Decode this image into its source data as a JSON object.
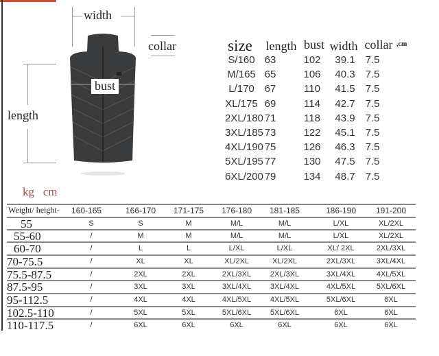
{
  "diagram": {
    "width_label": "width",
    "collar_label": "collar",
    "bust_label": "bust",
    "length_label": "length"
  },
  "size_table": {
    "headers": [
      "size",
      "length",
      "bust",
      "width",
      "collar"
    ],
    "unit": ",cm",
    "rows": [
      [
        "S/160",
        "63",
        "102",
        "39.1",
        "7.5"
      ],
      [
        "M/165",
        "65",
        "106",
        "40.3",
        "7.5"
      ],
      [
        "L/170",
        "67",
        "110",
        "41.5",
        "7.5"
      ],
      [
        "XL/175",
        "69",
        "114",
        "42.7",
        "7.5"
      ],
      [
        "2XL/180",
        "71",
        "118",
        "43.9",
        "7.5"
      ],
      [
        "3XL/185",
        "73",
        "122",
        "45.1",
        "7.5"
      ],
      [
        "4XL/190",
        "75",
        "126",
        "46.3",
        "7.5"
      ],
      [
        "5XL/195",
        "77",
        "130",
        "47.5",
        "7.5"
      ],
      [
        "6XL/200",
        "79",
        "134",
        "48.7",
        "7.5"
      ]
    ]
  },
  "fit_table": {
    "units": "kg   cm",
    "corner": "Weight/ height-",
    "heights": [
      "160-165",
      "166-170",
      "171-175",
      "176-180",
      "181-185",
      "186-190",
      "191-200"
    ],
    "rows": [
      {
        "weight": "55",
        "sizes": [
          "S",
          "S",
          "M",
          "M/L",
          "M/L",
          "L/XL",
          "XL/2XL"
        ]
      },
      {
        "weight": "55-60",
        "sizes": [
          "/",
          "M",
          "M",
          "M/L",
          "M/L",
          "L/XL",
          "XL/2XL"
        ]
      },
      {
        "weight": "60-70",
        "sizes": [
          "/",
          "L",
          "L",
          "L/XL",
          "L/XL",
          "XL/ 2XL",
          "2XL/3XL"
        ]
      },
      {
        "weight": "70-75.5",
        "sizes": [
          "/",
          "XL",
          "XL",
          "XL/2XL",
          "XL/2XL",
          "2XL/3XL",
          "3XL/4XL"
        ]
      },
      {
        "weight": "75.5-87.5",
        "sizes": [
          "/",
          "2XL",
          "2XL",
          "2XL/3XL",
          "2XL/3XL",
          "3XL/4XL",
          "4XL/5XL"
        ]
      },
      {
        "weight": "87.5-95",
        "sizes": [
          "/",
          "3XL",
          "3XL",
          "3XL/4XL",
          "3XL/4XL",
          "4XL/5XL",
          "5XL/6XL"
        ]
      },
      {
        "weight": "95-112.5",
        "sizes": [
          "/",
          "4XL",
          "4XL",
          "4XL/5XL",
          "4XL/5XL",
          "5XL/6XL",
          "6XL"
        ]
      },
      {
        "weight": "102.5-110",
        "sizes": [
          "/",
          "5XL",
          "5XL",
          "5XL/6XL",
          "5XL/6XL",
          "6XL",
          "6XL"
        ]
      },
      {
        "weight": "110-117.5",
        "sizes": [
          "/",
          "6XL",
          "6XL",
          "6XL",
          "6XL",
          "6XL",
          "6XL"
        ]
      }
    ]
  },
  "colors": {
    "accent_bar": "#c8502e",
    "units_text": "#a0524f",
    "vest": "#3a3b3d"
  }
}
